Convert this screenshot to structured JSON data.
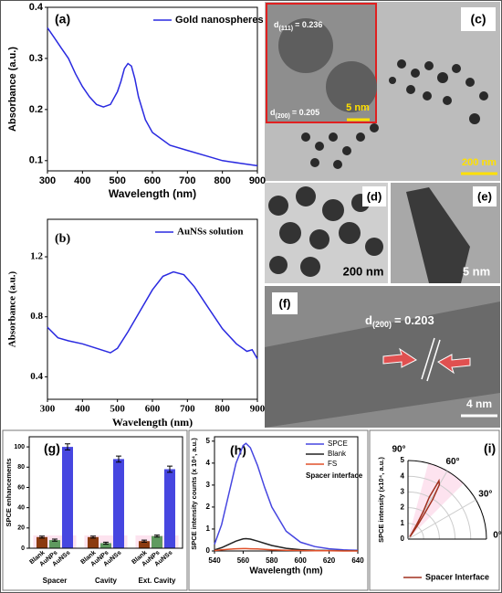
{
  "chart_data": [
    {
      "type": "line",
      "panel_label": "(a)",
      "x_label": "Wavelength (nm)",
      "y_label": "Absorbance (a.u.)",
      "x": [
        300,
        320,
        340,
        360,
        380,
        400,
        420,
        440,
        460,
        480,
        500,
        510,
        520,
        530,
        540,
        550,
        560,
        580,
        600,
        650,
        700,
        750,
        800,
        850,
        900
      ],
      "series": [
        {
          "name": "Gold nanospheres",
          "color": "#2a2ae0",
          "values": [
            0.36,
            0.34,
            0.32,
            0.3,
            0.27,
            0.245,
            0.225,
            0.21,
            0.205,
            0.21,
            0.235,
            0.255,
            0.28,
            0.29,
            0.285,
            0.26,
            0.225,
            0.18,
            0.155,
            0.13,
            0.12,
            0.11,
            0.1,
            0.095,
            0.09
          ]
        }
      ],
      "xlim": [
        300,
        900
      ],
      "xticks": [
        300,
        400,
        500,
        600,
        700,
        800,
        900
      ],
      "ylim": [
        0.08,
        0.4
      ],
      "yticks": [
        0.1,
        0.2,
        0.3,
        0.4
      ]
    },
    {
      "type": "line",
      "panel_label": "(b)",
      "x_label": "Wavelength (nm)",
      "y_label": "Absorbance (a.u.)",
      "x": [
        300,
        330,
        360,
        400,
        440,
        480,
        500,
        530,
        560,
        600,
        630,
        660,
        690,
        720,
        760,
        800,
        840,
        870,
        885,
        890,
        900
      ],
      "series": [
        {
          "name": "AuNSs solution",
          "color": "#2a2ae0",
          "values": [
            0.73,
            0.66,
            0.64,
            0.62,
            0.59,
            0.56,
            0.59,
            0.7,
            0.82,
            0.98,
            1.07,
            1.1,
            1.08,
            1.0,
            0.86,
            0.72,
            0.62,
            0.57,
            0.58,
            0.56,
            0.52
          ]
        }
      ],
      "xlim": [
        300,
        900
      ],
      "xticks": [
        300,
        400,
        500,
        600,
        700,
        800,
        900
      ],
      "ylim": [
        0.25,
        1.45
      ],
      "yticks": [
        0.4,
        0.8,
        1.2
      ]
    },
    {
      "type": "bar",
      "panel_label": "(g)",
      "y_label": "SPCE enhancements",
      "categories": [
        "Spacer",
        "Cavity",
        "Ext. Cavity"
      ],
      "series": [
        {
          "name": "Blank",
          "color": "#8b3a0f",
          "values": [
            11,
            11,
            7
          ],
          "errors": [
            1,
            1,
            1
          ]
        },
        {
          "name": "AuNPs",
          "color": "#5f9a5f",
          "values": [
            8,
            5,
            12
          ],
          "errors": [
            1,
            1,
            1
          ]
        },
        {
          "name": "AuNSs",
          "color": "#4646e0",
          "values": [
            100,
            88,
            78
          ],
          "errors": [
            3,
            3,
            3
          ]
        }
      ],
      "ylim": [
        0,
        110
      ],
      "yticks": [
        0,
        20,
        40,
        60,
        80,
        100
      ]
    },
    {
      "type": "line",
      "panel_label": "(h)",
      "x_label": "Wavelength (nm)",
      "y_label": "SPCE intensity counts (x 10⁴, a.u.)",
      "annotation": "Spacer interface",
      "x": [
        540,
        545,
        550,
        555,
        560,
        562,
        565,
        570,
        575,
        580,
        590,
        600,
        610,
        620,
        630,
        640
      ],
      "series": [
        {
          "name": "SPCE",
          "color": "#4646e0",
          "values": [
            0.3,
            1.2,
            2.6,
            4.0,
            4.8,
            4.9,
            4.7,
            3.9,
            2.9,
            2.0,
            0.9,
            0.4,
            0.2,
            0.1,
            0.05,
            0.03
          ]
        },
        {
          "name": "Blank",
          "color": "#222222",
          "values": [
            0.05,
            0.15,
            0.3,
            0.45,
            0.55,
            0.56,
            0.54,
            0.45,
            0.35,
            0.25,
            0.12,
            0.06,
            0.03,
            0.02,
            0.01,
            0.01
          ]
        },
        {
          "name": "FS",
          "color": "#e0502a",
          "values": [
            0.02,
            0.05,
            0.08,
            0.1,
            0.11,
            0.11,
            0.1,
            0.09,
            0.07,
            0.05,
            0.03,
            0.02,
            0.01,
            0.01,
            0,
            0
          ]
        }
      ],
      "xlim": [
        540,
        640
      ],
      "xticks": [
        540,
        560,
        580,
        600,
        620,
        640
      ],
      "ylim": [
        0,
        5.2
      ],
      "yticks": [
        0,
        1,
        2,
        3,
        4,
        5
      ]
    },
    {
      "type": "polar",
      "panel_label": "(i)",
      "y_label": "SPCE intensity (x10⁴, a.u.)",
      "series": [
        {
          "name": "Spacer Interface",
          "color": "#a0301e",
          "theta": [
            50,
            55,
            57,
            58,
            60,
            62,
            63,
            61,
            59,
            50
          ],
          "r": [
            0.2,
            1,
            2,
            3,
            4,
            4.2,
            3,
            2,
            1,
            0.2
          ]
        }
      ],
      "rlim": [
        0,
        5
      ],
      "rticks": [
        0,
        1,
        2,
        3,
        4,
        5
      ],
      "thetaticks": [
        {
          "value": 90,
          "label": "90°"
        },
        {
          "value": 60,
          "label": "60°"
        },
        {
          "value": 30,
          "label": "30°"
        },
        {
          "value": 0,
          "label": "0°"
        }
      ]
    }
  ],
  "images": {
    "c": {
      "label": "(c)",
      "scale": "200 nm",
      "inset_scale": "5 nm",
      "d1": {
        "symbol": "d",
        "sub": "(111)",
        "value": "= 0.236"
      },
      "d2": {
        "symbol": "d",
        "sub": "(200)",
        "value": "= 0.205"
      }
    },
    "d": {
      "label": "(d)",
      "scale": "200 nm"
    },
    "e": {
      "label": "(e)",
      "scale": "5 nm"
    },
    "f": {
      "label": "(f)",
      "scale": "4 nm",
      "d": {
        "symbol": "d",
        "sub": "(200)",
        "value": "= 0.203"
      }
    }
  }
}
